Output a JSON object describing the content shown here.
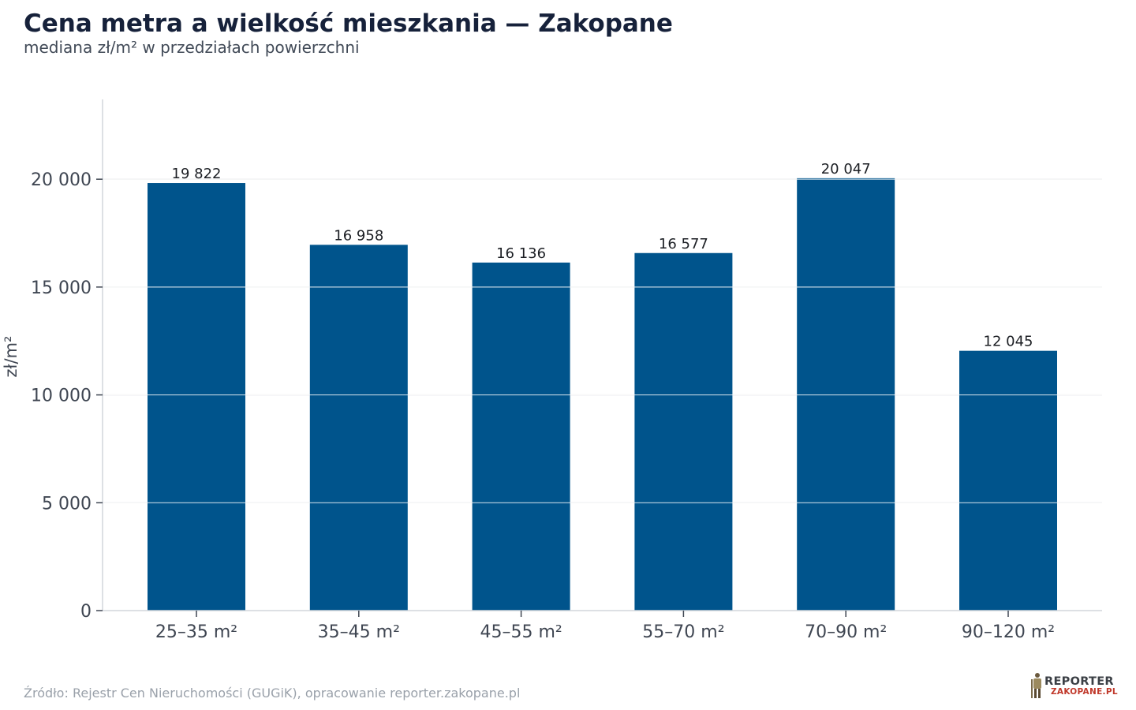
{
  "title": "Cena metra a wielkość mieszkania — Zakopane",
  "subtitle": "mediana zł/m² w przedziałach powierzchni",
  "source": "Źródło: Rejestr Cen Nieruchomości (GUGiK), opracowanie reporter.zakopane.pl",
  "logo": {
    "line1": "REPORTER",
    "line2": "ZAKOPANE.PL"
  },
  "colors": {
    "bar": "#00548c",
    "grid": "#e3e5e8",
    "axis": "#d2d6db"
  },
  "chart_data": {
    "type": "bar",
    "categories": [
      "25–35 m²",
      "35–45 m²",
      "45–55 m²",
      "55–70 m²",
      "70–90 m²",
      "90–120 m²"
    ],
    "values": [
      19822,
      16958,
      16136,
      16577,
      20047,
      12045
    ],
    "data_labels": [
      "19 822",
      "16 958",
      "16 136",
      "16 577",
      "20 047",
      "12 045"
    ],
    "ylabel": "zł/m²",
    "xlabel": "",
    "ylim": [
      0,
      23700
    ],
    "yticks": [
      0,
      5000,
      10000,
      15000,
      20000
    ],
    "ytick_labels": [
      "0",
      "5 000",
      "10 000",
      "15 000",
      "20 000"
    ],
    "grid": "horizontal",
    "legend": "none"
  }
}
